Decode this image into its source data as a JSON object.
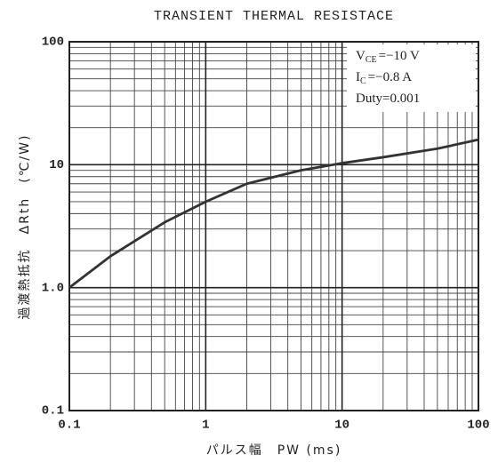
{
  "chart_data": {
    "type": "line",
    "title": "TRANSIENT THERMAL RESISTACE",
    "x_label": "パルス幅　PW (ms)",
    "y_label": "過渡熱抵抗　ΔRth　(℃/W)",
    "annotations": [
      {
        "main": "V",
        "sub": "CE",
        "rest": "=−10 V"
      },
      {
        "main": "I",
        "sub": "C",
        "rest": "=−0.8 A"
      },
      {
        "main": "Duty=0.001"
      }
    ],
    "log_x": true,
    "log_y": true,
    "grid": true,
    "color": "#333333",
    "x": [
      0.1,
      0.2,
      0.5,
      1,
      2,
      5,
      10,
      20,
      50,
      100
    ],
    "values": [
      1.0,
      1.8,
      3.4,
      5.0,
      7.0,
      9.0,
      10.3,
      11.5,
      13.5,
      16
    ],
    "xlim": [
      0.1,
      100
    ],
    "xticks": [
      0.1,
      1,
      10,
      100
    ],
    "ylim": [
      0.1,
      100
    ],
    "yticks": [
      0.1,
      {
        "value": 1,
        "label": "1.0"
      },
      10,
      100
    ]
  }
}
